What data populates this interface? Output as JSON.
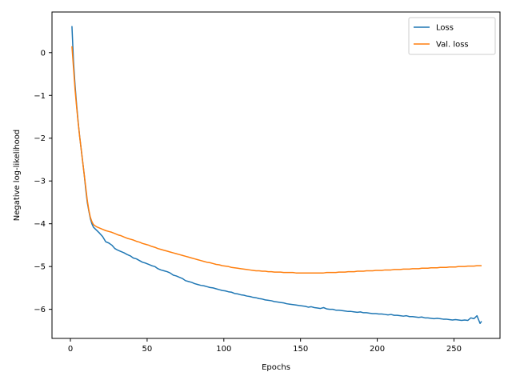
{
  "chart_data": {
    "type": "line",
    "xlabel": "Epochs",
    "ylabel": "Negative log-likelihood",
    "xlim": [
      -12,
      280
    ],
    "ylim": [
      -6.68,
      0.95
    ],
    "xticks": [
      0,
      50,
      100,
      150,
      200,
      250
    ],
    "yticks": [
      0,
      -1,
      -2,
      -3,
      -4,
      -5,
      -6
    ],
    "grid": false,
    "legend_position": "top-right",
    "series": [
      {
        "name": "Loss",
        "color": "#1f77b4",
        "points": [
          [
            1,
            0.62
          ],
          [
            2,
            -0.2
          ],
          [
            3,
            -0.75
          ],
          [
            4,
            -1.2
          ],
          [
            5,
            -1.6
          ],
          [
            6,
            -1.95
          ],
          [
            7,
            -2.25
          ],
          [
            8,
            -2.55
          ],
          [
            9,
            -2.85
          ],
          [
            10,
            -3.2
          ],
          [
            11,
            -3.5
          ],
          [
            12,
            -3.7
          ],
          [
            13,
            -3.88
          ],
          [
            14,
            -4.0
          ],
          [
            15,
            -4.08
          ],
          [
            17,
            -4.15
          ],
          [
            19,
            -4.22
          ],
          [
            21,
            -4.3
          ],
          [
            23,
            -4.42
          ],
          [
            25,
            -4.45
          ],
          [
            27,
            -4.5
          ],
          [
            29,
            -4.58
          ],
          [
            31,
            -4.62
          ],
          [
            33,
            -4.65
          ],
          [
            35,
            -4.68
          ],
          [
            37,
            -4.72
          ],
          [
            39,
            -4.75
          ],
          [
            41,
            -4.8
          ],
          [
            43,
            -4.82
          ],
          [
            45,
            -4.86
          ],
          [
            47,
            -4.9
          ],
          [
            49,
            -4.92
          ],
          [
            51,
            -4.95
          ],
          [
            53,
            -4.98
          ],
          [
            55,
            -5.0
          ],
          [
            57,
            -5.05
          ],
          [
            59,
            -5.08
          ],
          [
            61,
            -5.1
          ],
          [
            63,
            -5.12
          ],
          [
            65,
            -5.15
          ],
          [
            67,
            -5.2
          ],
          [
            69,
            -5.22
          ],
          [
            71,
            -5.25
          ],
          [
            73,
            -5.28
          ],
          [
            75,
            -5.33
          ],
          [
            77,
            -5.35
          ],
          [
            79,
            -5.37
          ],
          [
            81,
            -5.4
          ],
          [
            83,
            -5.42
          ],
          [
            85,
            -5.44
          ],
          [
            87,
            -5.45
          ],
          [
            89,
            -5.47
          ],
          [
            91,
            -5.49
          ],
          [
            93,
            -5.5
          ],
          [
            95,
            -5.52
          ],
          [
            97,
            -5.54
          ],
          [
            99,
            -5.56
          ],
          [
            101,
            -5.57
          ],
          [
            103,
            -5.59
          ],
          [
            105,
            -5.6
          ],
          [
            107,
            -5.63
          ],
          [
            109,
            -5.64
          ],
          [
            111,
            -5.66
          ],
          [
            113,
            -5.67
          ],
          [
            115,
            -5.69
          ],
          [
            117,
            -5.7
          ],
          [
            119,
            -5.72
          ],
          [
            121,
            -5.73
          ],
          [
            123,
            -5.75
          ],
          [
            125,
            -5.76
          ],
          [
            127,
            -5.78
          ],
          [
            129,
            -5.79
          ],
          [
            131,
            -5.8
          ],
          [
            133,
            -5.82
          ],
          [
            135,
            -5.83
          ],
          [
            137,
            -5.84
          ],
          [
            139,
            -5.85
          ],
          [
            141,
            -5.87
          ],
          [
            143,
            -5.88
          ],
          [
            145,
            -5.89
          ],
          [
            147,
            -5.9
          ],
          [
            149,
            -5.91
          ],
          [
            151,
            -5.92
          ],
          [
            153,
            -5.93
          ],
          [
            155,
            -5.95
          ],
          [
            157,
            -5.94
          ],
          [
            159,
            -5.96
          ],
          [
            161,
            -5.97
          ],
          [
            163,
            -5.98
          ],
          [
            165,
            -5.96
          ],
          [
            167,
            -5.99
          ],
          [
            169,
            -6.0
          ],
          [
            171,
            -6.0
          ],
          [
            173,
            -6.02
          ],
          [
            175,
            -6.02
          ],
          [
            177,
            -6.03
          ],
          [
            179,
            -6.04
          ],
          [
            181,
            -6.05
          ],
          [
            183,
            -6.05
          ],
          [
            185,
            -6.06
          ],
          [
            187,
            -6.07
          ],
          [
            189,
            -6.06
          ],
          [
            191,
            -6.08
          ],
          [
            193,
            -6.08
          ],
          [
            195,
            -6.09
          ],
          [
            197,
            -6.1
          ],
          [
            199,
            -6.1
          ],
          [
            201,
            -6.11
          ],
          [
            203,
            -6.11
          ],
          [
            205,
            -6.12
          ],
          [
            207,
            -6.13
          ],
          [
            209,
            -6.12
          ],
          [
            211,
            -6.14
          ],
          [
            213,
            -6.14
          ],
          [
            215,
            -6.15
          ],
          [
            217,
            -6.16
          ],
          [
            219,
            -6.15
          ],
          [
            221,
            -6.17
          ],
          [
            223,
            -6.17
          ],
          [
            225,
            -6.18
          ],
          [
            227,
            -6.19
          ],
          [
            229,
            -6.18
          ],
          [
            231,
            -6.2
          ],
          [
            233,
            -6.2
          ],
          [
            235,
            -6.21
          ],
          [
            237,
            -6.22
          ],
          [
            239,
            -6.21
          ],
          [
            241,
            -6.22
          ],
          [
            243,
            -6.23
          ],
          [
            245,
            -6.23
          ],
          [
            247,
            -6.24
          ],
          [
            249,
            -6.25
          ],
          [
            251,
            -6.24
          ],
          [
            253,
            -6.25
          ],
          [
            255,
            -6.26
          ],
          [
            257,
            -6.25
          ],
          [
            259,
            -6.26
          ],
          [
            261,
            -6.2
          ],
          [
            263,
            -6.22
          ],
          [
            265,
            -6.15
          ],
          [
            267,
            -6.33
          ],
          [
            268,
            -6.28
          ]
        ]
      },
      {
        "name": "Val. loss",
        "color": "#ff7f0e",
        "points": [
          [
            1,
            0.15
          ],
          [
            2,
            -0.35
          ],
          [
            3,
            -0.85
          ],
          [
            4,
            -1.25
          ],
          [
            5,
            -1.62
          ],
          [
            6,
            -1.95
          ],
          [
            7,
            -2.25
          ],
          [
            8,
            -2.55
          ],
          [
            9,
            -2.85
          ],
          [
            10,
            -3.15
          ],
          [
            11,
            -3.45
          ],
          [
            12,
            -3.68
          ],
          [
            13,
            -3.85
          ],
          [
            14,
            -3.95
          ],
          [
            15,
            -4.02
          ],
          [
            17,
            -4.07
          ],
          [
            19,
            -4.1
          ],
          [
            21,
            -4.13
          ],
          [
            23,
            -4.16
          ],
          [
            25,
            -4.18
          ],
          [
            27,
            -4.2
          ],
          [
            29,
            -4.23
          ],
          [
            31,
            -4.26
          ],
          [
            33,
            -4.28
          ],
          [
            35,
            -4.31
          ],
          [
            37,
            -4.34
          ],
          [
            39,
            -4.36
          ],
          [
            41,
            -4.38
          ],
          [
            43,
            -4.41
          ],
          [
            45,
            -4.43
          ],
          [
            47,
            -4.46
          ],
          [
            49,
            -4.48
          ],
          [
            51,
            -4.5
          ],
          [
            53,
            -4.53
          ],
          [
            55,
            -4.55
          ],
          [
            57,
            -4.58
          ],
          [
            59,
            -4.6
          ],
          [
            61,
            -4.62
          ],
          [
            63,
            -4.64
          ],
          [
            65,
            -4.66
          ],
          [
            67,
            -4.68
          ],
          [
            69,
            -4.7
          ],
          [
            71,
            -4.72
          ],
          [
            73,
            -4.74
          ],
          [
            75,
            -4.76
          ],
          [
            77,
            -4.78
          ],
          [
            79,
            -4.8
          ],
          [
            81,
            -4.82
          ],
          [
            83,
            -4.84
          ],
          [
            85,
            -4.86
          ],
          [
            87,
            -4.88
          ],
          [
            89,
            -4.9
          ],
          [
            91,
            -4.91
          ],
          [
            93,
            -4.93
          ],
          [
            95,
            -4.95
          ],
          [
            97,
            -4.96
          ],
          [
            99,
            -4.98
          ],
          [
            101,
            -4.99
          ],
          [
            103,
            -5.0
          ],
          [
            105,
            -5.02
          ],
          [
            107,
            -5.03
          ],
          [
            109,
            -5.04
          ],
          [
            111,
            -5.05
          ],
          [
            113,
            -5.06
          ],
          [
            115,
            -5.07
          ],
          [
            117,
            -5.08
          ],
          [
            119,
            -5.09
          ],
          [
            121,
            -5.1
          ],
          [
            123,
            -5.1
          ],
          [
            125,
            -5.11
          ],
          [
            127,
            -5.11
          ],
          [
            129,
            -5.12
          ],
          [
            131,
            -5.12
          ],
          [
            133,
            -5.13
          ],
          [
            135,
            -5.13
          ],
          [
            137,
            -5.13
          ],
          [
            139,
            -5.14
          ],
          [
            141,
            -5.14
          ],
          [
            143,
            -5.14
          ],
          [
            145,
            -5.14
          ],
          [
            147,
            -5.15
          ],
          [
            149,
            -5.15
          ],
          [
            151,
            -5.15
          ],
          [
            153,
            -5.15
          ],
          [
            155,
            -5.15
          ],
          [
            157,
            -5.15
          ],
          [
            159,
            -5.15
          ],
          [
            161,
            -5.15
          ],
          [
            163,
            -5.15
          ],
          [
            165,
            -5.15
          ],
          [
            167,
            -5.14
          ],
          [
            169,
            -5.14
          ],
          [
            171,
            -5.14
          ],
          [
            173,
            -5.14
          ],
          [
            175,
            -5.13
          ],
          [
            177,
            -5.13
          ],
          [
            179,
            -5.13
          ],
          [
            181,
            -5.12
          ],
          [
            183,
            -5.12
          ],
          [
            185,
            -5.12
          ],
          [
            187,
            -5.11
          ],
          [
            189,
            -5.11
          ],
          [
            191,
            -5.11
          ],
          [
            193,
            -5.1
          ],
          [
            195,
            -5.1
          ],
          [
            197,
            -5.1
          ],
          [
            199,
            -5.09
          ],
          [
            201,
            -5.09
          ],
          [
            203,
            -5.09
          ],
          [
            205,
            -5.08
          ],
          [
            207,
            -5.08
          ],
          [
            209,
            -5.08
          ],
          [
            211,
            -5.07
          ],
          [
            213,
            -5.07
          ],
          [
            215,
            -5.07
          ],
          [
            217,
            -5.06
          ],
          [
            219,
            -5.06
          ],
          [
            221,
            -5.06
          ],
          [
            223,
            -5.05
          ],
          [
            225,
            -5.05
          ],
          [
            227,
            -5.05
          ],
          [
            229,
            -5.04
          ],
          [
            231,
            -5.04
          ],
          [
            233,
            -5.04
          ],
          [
            235,
            -5.03
          ],
          [
            237,
            -5.03
          ],
          [
            239,
            -5.03
          ],
          [
            241,
            -5.02
          ],
          [
            243,
            -5.02
          ],
          [
            245,
            -5.02
          ],
          [
            247,
            -5.01
          ],
          [
            249,
            -5.01
          ],
          [
            251,
            -5.01
          ],
          [
            253,
            -5.0
          ],
          [
            255,
            -5.0
          ],
          [
            257,
            -5.0
          ],
          [
            259,
            -4.99
          ],
          [
            261,
            -4.99
          ],
          [
            263,
            -4.99
          ],
          [
            265,
            -4.98
          ],
          [
            267,
            -4.98
          ],
          [
            268,
            -4.98
          ]
        ]
      }
    ]
  }
}
